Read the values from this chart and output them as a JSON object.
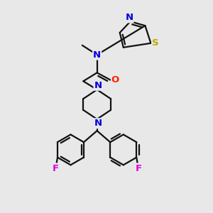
{
  "bg_color": "#e8e8e8",
  "atom_colors": {
    "N": "#0000dd",
    "O": "#ff2200",
    "S": "#bbaa00",
    "F": "#dd00dd"
  },
  "bond_color": "#111111",
  "bond_width": 1.6,
  "dbo": 0.011,
  "figsize": [
    3.0,
    3.0
  ],
  "dpi": 100
}
